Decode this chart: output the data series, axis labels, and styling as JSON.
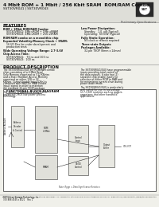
{
  "title": "4 Mbit ROM + 1 Mbit / 256 Kbit SRAM  ROM/RAM Combo",
  "subtitle": "SST30VR041 | SST30VR043",
  "prelim": "Preliminary Specifications",
  "page_bg": "#f0f0ea",
  "features_title": "FEATURES",
  "features_left": [
    [
      "bold",
      "ROM + 1Mbit ROM/RAM Combo:"
    ],
    [
      "norm",
      "  SST30VR041: 4Mb uROM + 1Mb uSRAM"
    ],
    [
      "norm",
      "  SST30VR043: 4Mb uROM + 256 uSRAM"
    ],
    [
      "empty",
      ""
    ],
    [
      "bold",
      "ROM/RAM combo on a monolithic chip"
    ],
    [
      "empty",
      ""
    ],
    [
      "bold",
      "Expanded Volatility/Memory Check + SRAM:"
    ],
    [
      "norm",
      "  16 I/O Pins for under development and"
    ],
    [
      "norm",
      "  production tests"
    ],
    [
      "empty",
      ""
    ],
    [
      "bold",
      "Wide Operating Voltage Range: 2.7-3.6V"
    ],
    [
      "empty",
      ""
    ],
    [
      "bold",
      "Chip Access Time:"
    ],
    [
      "norm",
      "  SST30VR041:   70 ns and 100 ns"
    ],
    [
      "norm",
      "  SST30VR043:  100 ns"
    ]
  ],
  "features_right": [
    [
      "bold",
      "Low Power Dissipation:"
    ],
    [
      "norm",
      "  Standby:   1.0  μA (Typical)"
    ],
    [
      "norm",
      "  Operating:  60 mW (Typical)"
    ],
    [
      "empty",
      ""
    ],
    [
      "bold",
      "Fully Static Operation:"
    ],
    [
      "norm",
      "  No clock or refresh required"
    ],
    [
      "empty",
      ""
    ],
    [
      "bold",
      "Three-state Outputs"
    ],
    [
      "empty",
      ""
    ],
    [
      "bold",
      "Packages Available:"
    ],
    [
      "norm",
      "  32-pin TSOP (8mm x 14mm)"
    ]
  ],
  "prod_desc_title": "PRODUCT DESCRIPTION",
  "block_diagram_title": "FUNCTIONAL BLOCK DIAGRAM",
  "footer_left1": "SST Silicon Storage Technology, Inc.",
  "footer_left2": "333 888 4545 x 4521    Rev 1",
  "footer_right": "The SST logo is a Registered mark of Silicon Storage Technology, Inc. Confidential until release by Silicon Storage Technology, Inc. www.sst.com/semiconductor_design/technology.html"
}
